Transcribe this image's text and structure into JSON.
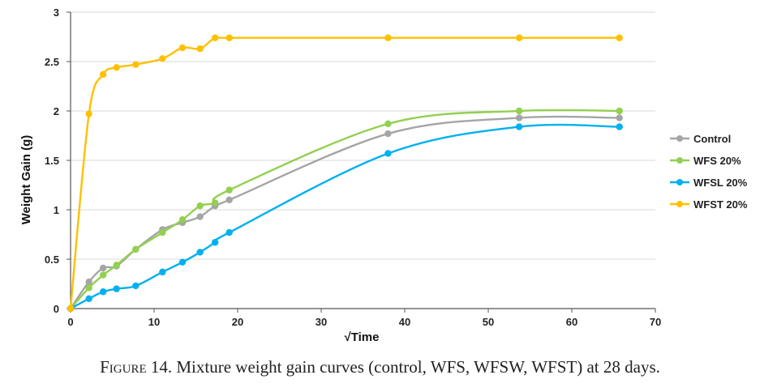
{
  "caption": {
    "label_initial": "F",
    "label_rest": "igure",
    "text": "14. Mixture weight gain curves (control, WFS, WFSW, WFST) at 28 days."
  },
  "chart_data": {
    "type": "line",
    "xlabel": "√Time",
    "ylabel": "Weight Gain (g)",
    "xlim": [
      0,
      70
    ],
    "ylim": [
      0,
      3
    ],
    "xticks": [
      0,
      10,
      20,
      30,
      40,
      50,
      60,
      70
    ],
    "yticks": [
      0,
      0.5,
      1,
      1.5,
      2,
      2.5,
      3
    ],
    "ytick_labels": [
      "0",
      "0.5",
      "1",
      "1.5",
      "2",
      "2.5",
      "3"
    ],
    "grid": "horizontal",
    "legend_position": "right",
    "series": [
      {
        "name": "Control",
        "color": "#a5a5a5",
        "x": [
          0,
          2.2,
          3.9,
          5.5,
          7.8,
          11.0,
          13.4,
          15.5,
          17.3,
          19.0,
          38.0,
          53.7,
          65.7
        ],
        "y": [
          0,
          0.27,
          0.41,
          0.43,
          0.6,
          0.8,
          0.87,
          0.93,
          1.04,
          1.1,
          1.77,
          1.93,
          1.93
        ]
      },
      {
        "name": "WFS 20%",
        "color": "#92d050",
        "x": [
          0,
          2.2,
          3.9,
          5.5,
          7.8,
          11.0,
          13.4,
          15.5,
          17.3,
          19.0,
          38.0,
          53.7,
          65.7
        ],
        "y": [
          0,
          0.21,
          0.34,
          0.44,
          0.6,
          0.77,
          0.9,
          1.04,
          1.07,
          1.2,
          1.87,
          2.0,
          2.0
        ]
      },
      {
        "name": "WFSL 20%",
        "color": "#00b0f0",
        "x": [
          0,
          2.2,
          3.9,
          5.5,
          7.8,
          11.0,
          13.4,
          15.5,
          17.3,
          19.0,
          38.0,
          53.7,
          65.7
        ],
        "y": [
          0,
          0.1,
          0.17,
          0.2,
          0.23,
          0.37,
          0.47,
          0.57,
          0.67,
          0.77,
          1.57,
          1.84,
          1.84
        ]
      },
      {
        "name": "WFST 20%",
        "color": "#ffc000",
        "x": [
          0,
          2.2,
          3.9,
          5.5,
          7.8,
          11.0,
          13.4,
          15.5,
          17.3,
          19.0,
          38.0,
          53.7,
          65.7
        ],
        "y": [
          0,
          1.97,
          2.37,
          2.44,
          2.47,
          2.53,
          2.64,
          2.63,
          2.74,
          2.74,
          2.74,
          2.74,
          2.74
        ]
      }
    ]
  }
}
